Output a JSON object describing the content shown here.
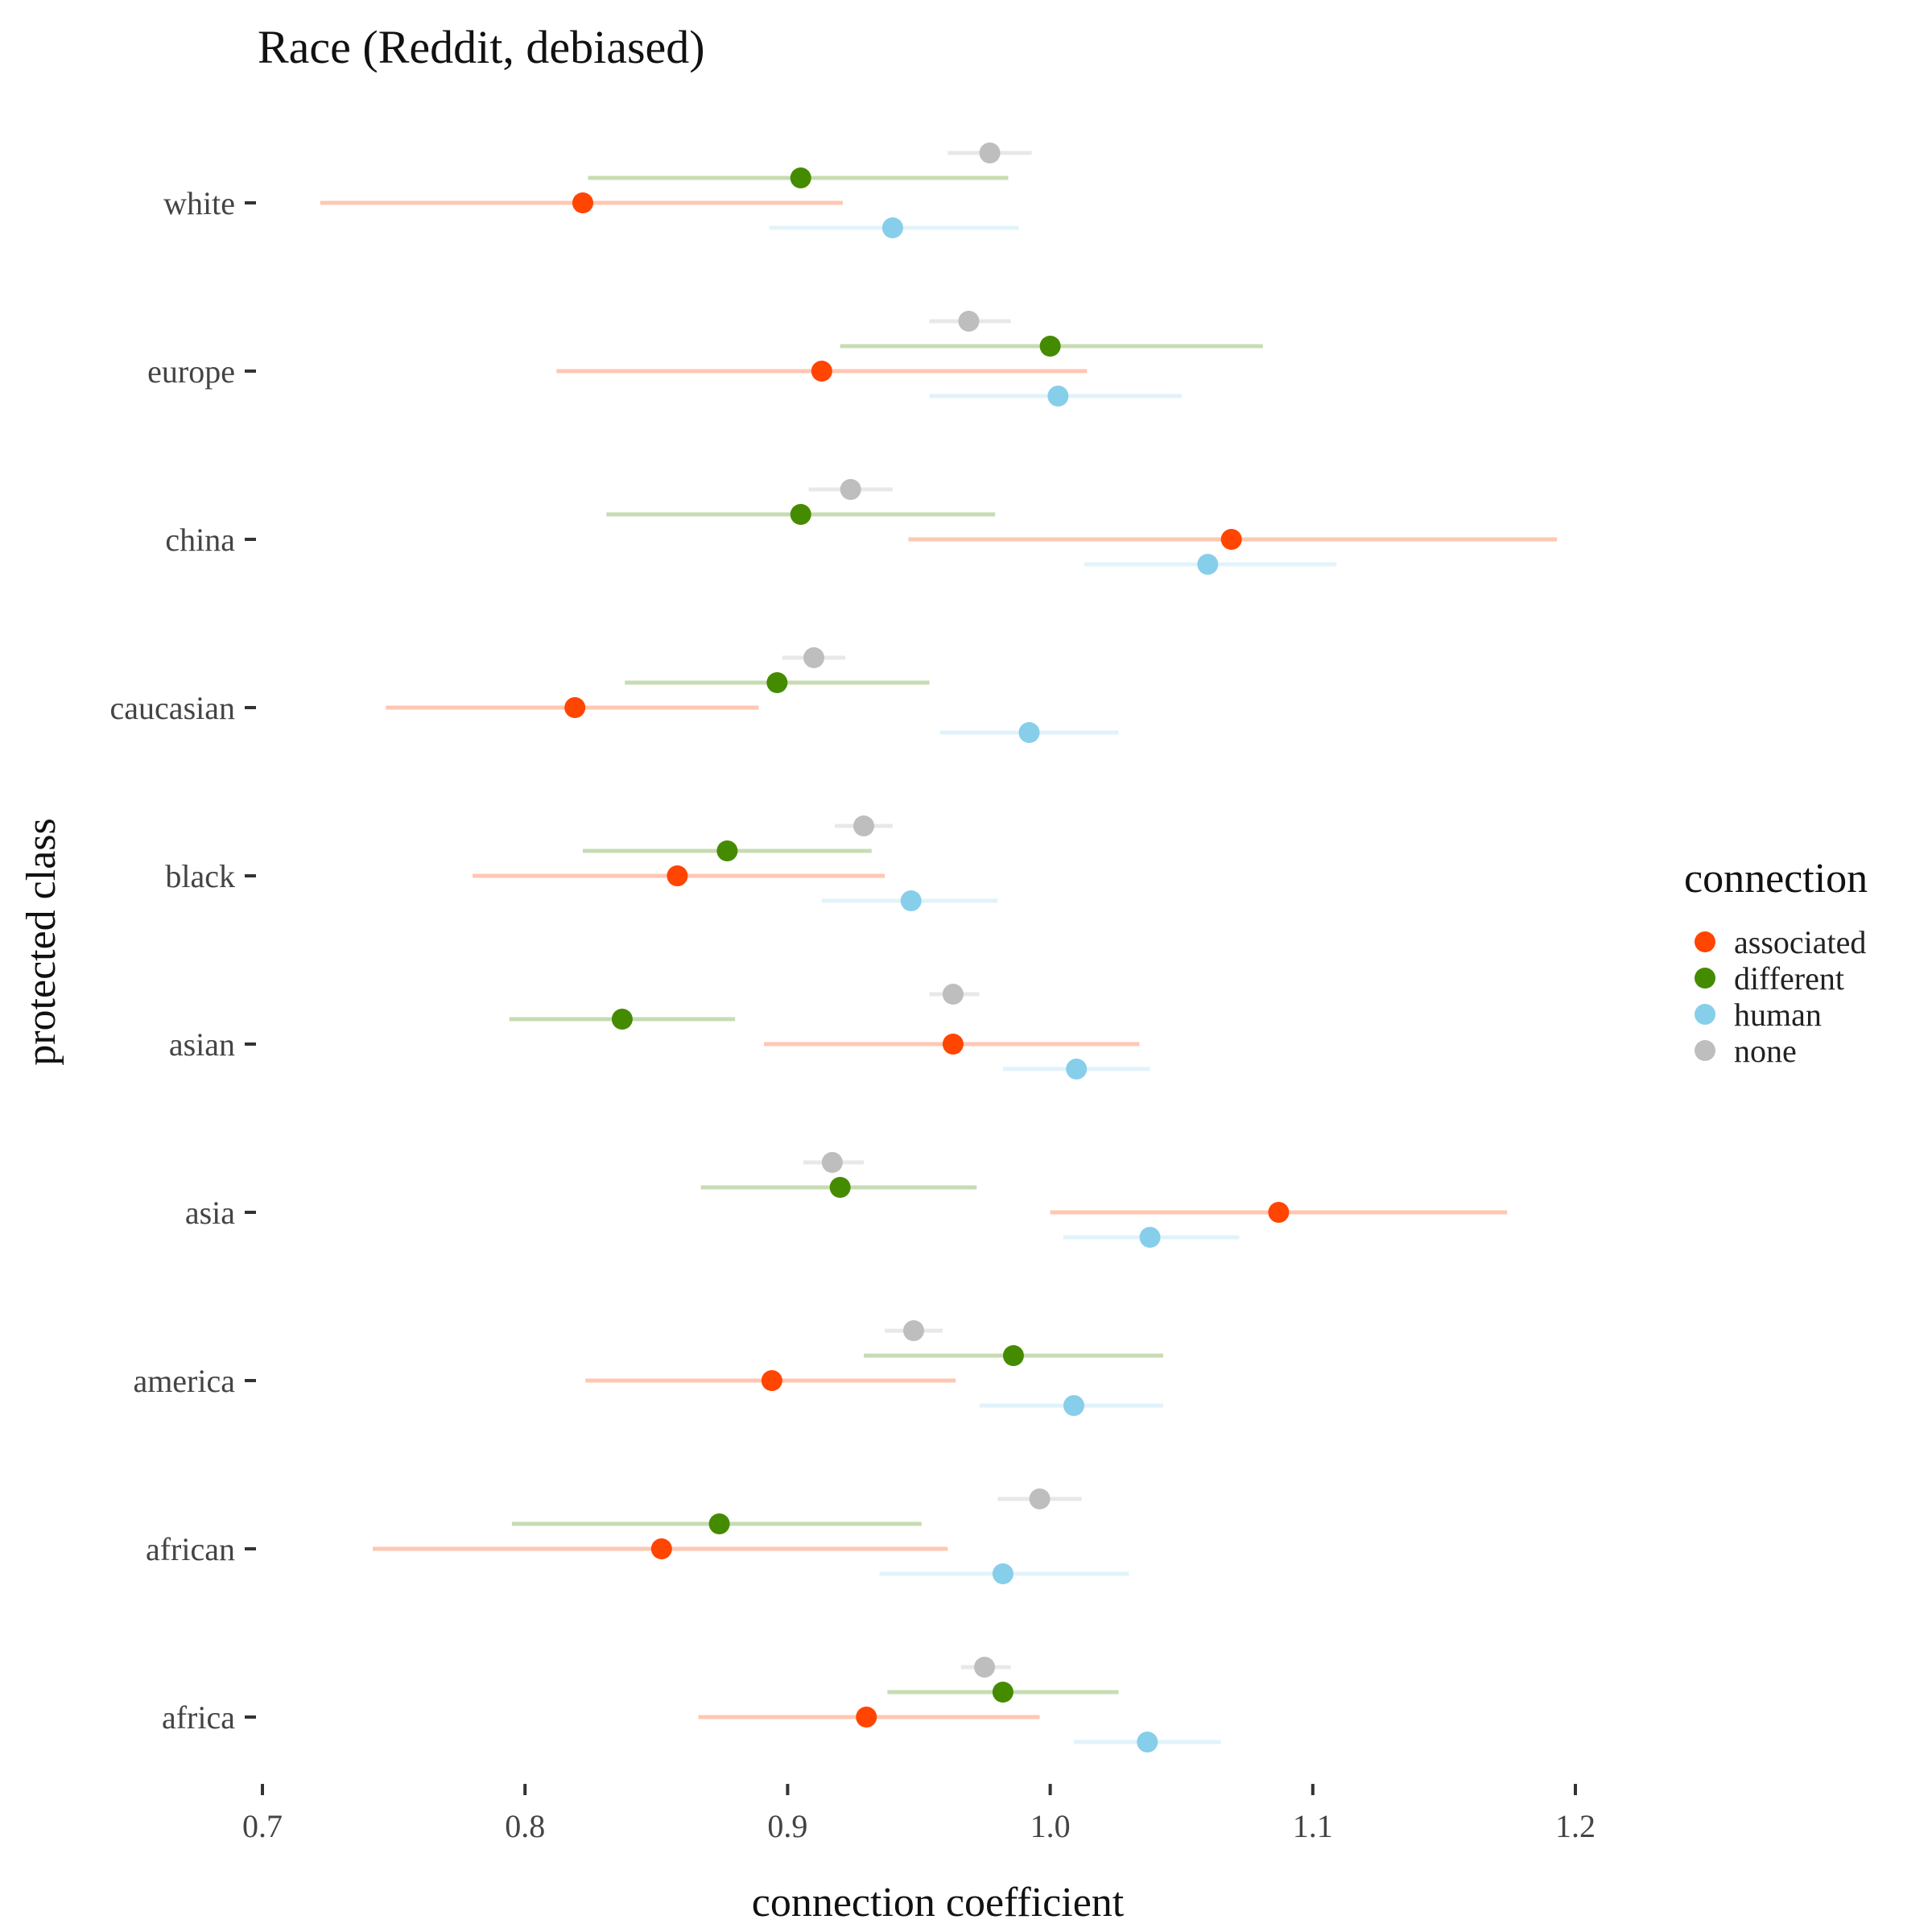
{
  "chart_data": {
    "type": "scatter",
    "title": "Race (Reddit, debiased)",
    "xlabel": "connection coefficient",
    "ylabel": "protected class",
    "xlim": [
      0.7,
      1.25
    ],
    "xticks": [
      0.7,
      0.8,
      0.9,
      1.0,
      1.1,
      1.2
    ],
    "xtick_labels": [
      "0.7",
      "0.8",
      "0.9",
      "1.0",
      "1.1",
      "1.2"
    ],
    "categories": [
      "white",
      "europe",
      "china",
      "caucasian",
      "black",
      "asian",
      "asia",
      "america",
      "african",
      "africa"
    ],
    "grid": false,
    "legend": {
      "title": "connection",
      "position": "right"
    },
    "series": [
      {
        "name": "associated",
        "color": "#FF4500",
        "values": [
          0.822,
          0.913,
          1.069,
          0.819,
          0.858,
          0.963,
          1.087,
          0.894,
          0.852,
          0.93
        ],
        "lower": [
          0.722,
          0.812,
          0.946,
          0.747,
          0.78,
          0.891,
          1.0,
          0.823,
          0.742,
          0.866
        ],
        "upper": [
          0.921,
          1.014,
          1.193,
          0.889,
          0.937,
          1.034,
          1.174,
          0.964,
          0.961,
          0.996
        ]
      },
      {
        "name": "different",
        "color": "#458B00",
        "values": [
          0.905,
          1.0,
          0.905,
          0.896,
          0.877,
          0.837,
          0.92,
          0.986,
          0.874,
          0.982
        ],
        "lower": [
          0.824,
          0.92,
          0.831,
          0.838,
          0.822,
          0.794,
          0.867,
          0.929,
          0.795,
          0.938
        ],
        "upper": [
          0.984,
          1.081,
          0.979,
          0.954,
          0.932,
          0.88,
          0.972,
          1.043,
          0.951,
          1.026
        ]
      },
      {
        "name": "human",
        "color": "#87CEEB",
        "values": [
          0.94,
          1.003,
          1.06,
          0.992,
          0.947,
          1.01,
          1.038,
          1.009,
          0.982,
          1.037
        ],
        "lower": [
          0.893,
          0.954,
          1.013,
          0.958,
          0.913,
          0.982,
          1.005,
          0.973,
          0.935,
          1.009
        ],
        "upper": [
          0.988,
          1.05,
          1.109,
          1.026,
          0.98,
          1.038,
          1.072,
          1.043,
          1.03,
          1.065
        ]
      },
      {
        "name": "none",
        "color": "#BEBEBE",
        "values": [
          0.977,
          0.969,
          0.924,
          0.91,
          0.929,
          0.963,
          0.917,
          0.948,
          0.996,
          0.975
        ],
        "lower": [
          0.961,
          0.954,
          0.908,
          0.898,
          0.918,
          0.954,
          0.906,
          0.937,
          0.98,
          0.966
        ],
        "upper": [
          0.993,
          0.985,
          0.94,
          0.922,
          0.94,
          0.973,
          0.929,
          0.959,
          1.012,
          0.985
        ]
      }
    ]
  }
}
